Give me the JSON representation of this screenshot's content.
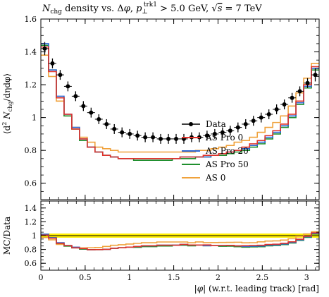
{
  "chart_data": {
    "type": "line",
    "title": "N_chg density vs. Δφ, p_⊥^trk1 > 5.0 GeV, √s = 7 TeV",
    "title_parts": {
      "main": "N",
      "main_sub": "chg",
      "mid": " density vs. Δ",
      "phi": "φ",
      "comma": ", ",
      "p": "p",
      "p_sub": "⊥",
      "p_sup": "trk1",
      "cut": " > 5.0 GeV, ",
      "sqrt": "√",
      "s": "s",
      "energy": " = 7 TeV"
    },
    "xlabel": "|φ| (w.r.t. leading track) [rad]",
    "xlabel_parts": {
      "bar_open": "|",
      "phi": "φ",
      "bar_close": "|",
      "rest": " (w.r.t. leading track) [rad]"
    },
    "ylabel": "⟨d² N_chg / dη dφ⟩",
    "ylabel_parts": {
      "open": "⟨d",
      "sup": "2",
      "n": " N",
      "sub": "chg",
      "rest": "/dηdφ⟩"
    },
    "ratio_ylabel": "MC/Data",
    "xlim": [
      0,
      3.14159
    ],
    "ylim": [
      0.5,
      1.6
    ],
    "ratio_ylim": [
      0.5,
      1.5
    ],
    "x_ticks": [
      0,
      0.5,
      1,
      1.5,
      2,
      2.5,
      3
    ],
    "x_tick_labels": [
      "0",
      "0.5",
      "1",
      "1.5",
      "2",
      "2.5",
      "3"
    ],
    "y_ticks": [
      0.6,
      0.8,
      1,
      1.2,
      1.4,
      1.6
    ],
    "y_tick_labels": [
      "0.6",
      "0.8",
      "1",
      "1.2",
      "1.4",
      "1.6"
    ],
    "ratio_y_ticks": [
      0.6,
      0.8,
      1,
      1.2,
      1.4
    ],
    "ratio_y_tick_labels": [
      "0.6",
      "0.8",
      "1",
      "1.2",
      "1.4"
    ],
    "legend_position": "center-right",
    "grid": false,
    "n_bins": 36,
    "series": [
      {
        "name": "Data",
        "style": "points",
        "color": "#000000",
        "values": [
          1.42,
          1.33,
          1.26,
          1.19,
          1.13,
          1.07,
          1.03,
          0.99,
          0.96,
          0.93,
          0.91,
          0.9,
          0.89,
          0.88,
          0.88,
          0.87,
          0.87,
          0.87,
          0.87,
          0.88,
          0.88,
          0.89,
          0.9,
          0.91,
          0.92,
          0.94,
          0.96,
          0.98,
          1.0,
          1.02,
          1.05,
          1.08,
          1.12,
          1.16,
          1.21,
          1.26
        ],
        "errors": [
          0.04,
          0.03,
          0.03,
          0.03,
          0.03,
          0.03,
          0.03,
          0.03,
          0.03,
          0.03,
          0.03,
          0.03,
          0.03,
          0.03,
          0.03,
          0.03,
          0.03,
          0.03,
          0.03,
          0.03,
          0.03,
          0.03,
          0.03,
          0.03,
          0.03,
          0.03,
          0.03,
          0.03,
          0.03,
          0.03,
          0.03,
          0.03,
          0.03,
          0.03,
          0.03,
          0.04
        ]
      },
      {
        "name": "AS Pro 0",
        "style": "histogram",
        "color": "#e0332b",
        "values": [
          1.43,
          1.28,
          1.12,
          1.02,
          0.93,
          0.87,
          0.82,
          0.79,
          0.77,
          0.76,
          0.75,
          0.75,
          0.75,
          0.75,
          0.75,
          0.75,
          0.75,
          0.75,
          0.76,
          0.76,
          0.76,
          0.77,
          0.77,
          0.78,
          0.79,
          0.8,
          0.82,
          0.84,
          0.86,
          0.89,
          0.92,
          0.96,
          1.02,
          1.1,
          1.2,
          1.31
        ]
      },
      {
        "name": "AS Pro 20",
        "style": "histogram",
        "color": "#2b67d6",
        "values": [
          1.45,
          1.29,
          1.13,
          1.02,
          0.94,
          0.87,
          0.82,
          0.79,
          0.77,
          0.76,
          0.75,
          0.75,
          0.75,
          0.75,
          0.75,
          0.75,
          0.75,
          0.75,
          0.76,
          0.76,
          0.76,
          0.76,
          0.77,
          0.78,
          0.79,
          0.8,
          0.81,
          0.83,
          0.85,
          0.88,
          0.91,
          0.95,
          1.01,
          1.09,
          1.19,
          1.3
        ]
      },
      {
        "name": "AS Pro 50",
        "style": "histogram",
        "color": "#1f8f2e",
        "values": [
          1.44,
          1.29,
          1.12,
          1.01,
          0.93,
          0.86,
          0.82,
          0.79,
          0.77,
          0.76,
          0.75,
          0.75,
          0.74,
          0.74,
          0.74,
          0.74,
          0.74,
          0.75,
          0.75,
          0.75,
          0.76,
          0.76,
          0.77,
          0.77,
          0.78,
          0.79,
          0.8,
          0.82,
          0.84,
          0.87,
          0.9,
          0.94,
          1.0,
          1.08,
          1.18,
          1.29
        ]
      },
      {
        "name": "AS 0",
        "style": "histogram",
        "color": "#f0a23c",
        "values": [
          1.38,
          1.25,
          1.1,
          1.01,
          0.94,
          0.88,
          0.85,
          0.82,
          0.81,
          0.8,
          0.79,
          0.79,
          0.79,
          0.79,
          0.79,
          0.79,
          0.79,
          0.79,
          0.79,
          0.79,
          0.8,
          0.8,
          0.81,
          0.82,
          0.83,
          0.85,
          0.86,
          0.88,
          0.91,
          0.94,
          0.97,
          1.01,
          1.07,
          1.15,
          1.24,
          1.33
        ]
      }
    ],
    "ratio_band": {
      "color": "#ffee00",
      "low": 0.97,
      "high": 1.03
    }
  }
}
